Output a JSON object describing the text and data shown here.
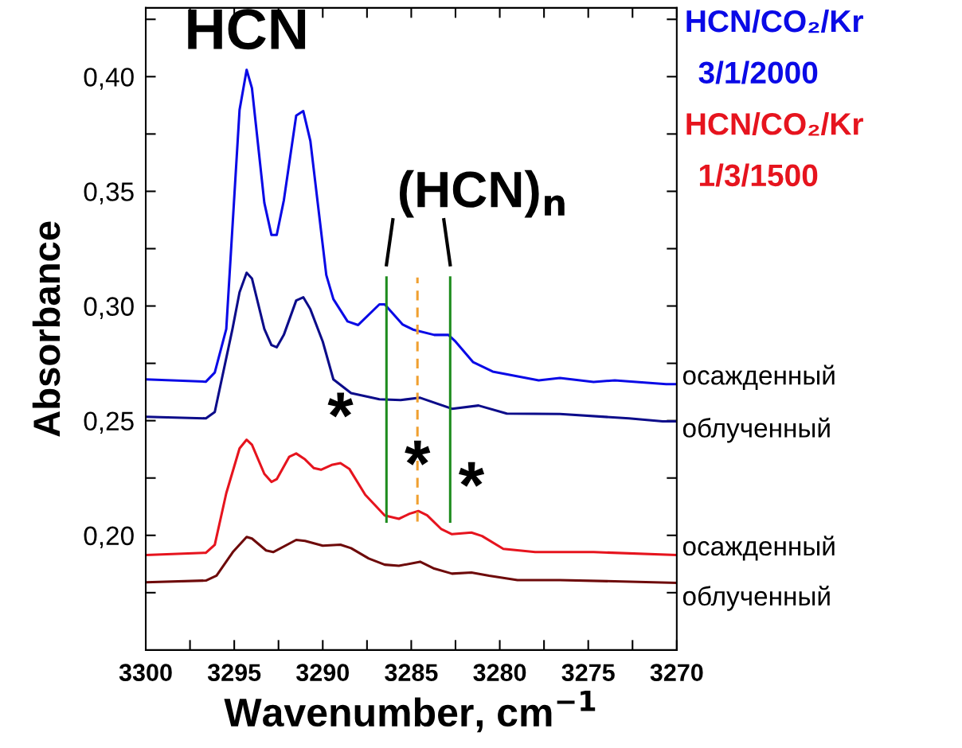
{
  "chart_data": {
    "type": "line",
    "xlabel": "Wavenumber, cm$^{−1}$",
    "ylabel": "Absorbance",
    "xlim": [
      3300,
      3270
    ],
    "ylim": [
      0.15,
      0.43
    ],
    "xticks": [
      3300,
      {
        "value": 3297.5,
        "label": null
      },
      3295,
      {
        "value": 3292.5,
        "label": null
      },
      3290,
      {
        "value": 3287.5,
        "label": null
      },
      3285,
      {
        "value": 3282.5,
        "label": null
      },
      3280,
      {
        "value": 3277.5,
        "label": null
      },
      3275,
      {
        "value": 3272.5,
        "label": null
      },
      3270
    ],
    "yticks": [
      {
        "value": 0.175,
        "label": null
      },
      {
        "value": 0.2,
        "label": "0,20"
      },
      {
        "value": 0.225,
        "label": null
      },
      {
        "value": 0.25,
        "label": "0,25"
      },
      {
        "value": 0.275,
        "label": null
      },
      {
        "value": 0.3,
        "label": "0,30"
      },
      {
        "value": 0.325,
        "label": null
      },
      {
        "value": 0.35,
        "label": "0,35"
      },
      {
        "value": 0.375,
        "label": null
      },
      {
        "value": 0.4,
        "label": "0,40"
      },
      {
        "value": 0.425,
        "label": null
      }
    ],
    "grid": false,
    "legend": false,
    "marker": "none",
    "line_style": "solid",
    "series": [
      {
        "name": "осажденный",
        "color": "#0a0ae6",
        "x": [
          3300,
          3296.6,
          3296.1,
          3295.45,
          3294.7,
          3294.3,
          3294.0,
          3293.3,
          3292.9,
          3292.6,
          3292.2,
          3291.5,
          3291.1,
          3290.7,
          3289.8,
          3289.4,
          3288.6,
          3288.0,
          3286.8,
          3286.5,
          3285.5,
          3284.9,
          3283.7,
          3282.9,
          3282.5,
          3281.5,
          3280.4,
          3277.8,
          3276.6,
          3274.7,
          3273.5,
          3270.6,
          3270
        ],
        "values": [
          0.268,
          0.267,
          0.271,
          0.29,
          0.3855,
          0.403,
          0.395,
          0.345,
          0.331,
          0.331,
          0.346,
          0.383,
          0.385,
          0.372,
          0.3135,
          0.303,
          0.2933,
          0.2917,
          0.3007,
          0.3007,
          0.292,
          0.2897,
          0.2874,
          0.2874,
          0.2845,
          0.2755,
          0.2714,
          0.2676,
          0.2686,
          0.2669,
          0.2676,
          0.2659,
          0.2659
        ]
      },
      {
        "name": "облученный",
        "color": "#0c0c8a",
        "x": [
          3300,
          3296.6,
          3296.1,
          3295.1,
          3294.7,
          3294.3,
          3294.0,
          3293.3,
          3292.9,
          3292.6,
          3292.2,
          3291.5,
          3291.1,
          3290.7,
          3290.0,
          3289.4,
          3288.4,
          3286.8,
          3285.6,
          3284.5,
          3282.7,
          3281.2,
          3279.6,
          3276.6,
          3272.7,
          3270.8,
          3270
        ],
        "values": [
          0.2517,
          0.251,
          0.2538,
          0.29,
          0.306,
          0.3145,
          0.312,
          0.29,
          0.283,
          0.282,
          0.2874,
          0.3024,
          0.3038,
          0.2986,
          0.2845,
          0.268,
          0.262,
          0.2593,
          0.259,
          0.26,
          0.2552,
          0.2566,
          0.2531,
          0.2529,
          0.251,
          0.2497,
          0.2497
        ]
      },
      {
        "name": "осажденный",
        "color": "#e6141e",
        "x": [
          3300,
          3296.6,
          3296.1,
          3295.45,
          3294.7,
          3294.3,
          3294.0,
          3293.3,
          3292.9,
          3292.6,
          3291.9,
          3291.5,
          3291.0,
          3290.5,
          3290.1,
          3289.5,
          3289.0,
          3288.5,
          3287.6,
          3286.5,
          3285.7,
          3285.1,
          3284.6,
          3284.1,
          3283.3,
          3282.7,
          3281.6,
          3281.0,
          3279.8,
          3278.0,
          3274.7,
          3270
        ],
        "values": [
          0.1914,
          0.1924,
          0.1959,
          0.2184,
          0.2379,
          0.2417,
          0.2395,
          0.2268,
          0.2233,
          0.2245,
          0.2342,
          0.2357,
          0.2331,
          0.2293,
          0.2286,
          0.2307,
          0.2315,
          0.229,
          0.2177,
          0.2087,
          0.2072,
          0.2094,
          0.2106,
          0.2087,
          0.2027,
          0.2005,
          0.2012,
          0.1997,
          0.1941,
          0.1927,
          0.1927,
          0.1914
        ]
      },
      {
        "name": "облученный",
        "color": "#6e0a0a",
        "x": [
          3300,
          3296.6,
          3296.0,
          3295.05,
          3294.3,
          3294.0,
          3293.2,
          3292.8,
          3291.5,
          3291.0,
          3290.0,
          3289.0,
          3288.4,
          3287.4,
          3286.5,
          3285.7,
          3284.5,
          3283.7,
          3282.7,
          3281.6,
          3280.6,
          3279.0,
          3276.6,
          3270
        ],
        "values": [
          0.1795,
          0.1803,
          0.1824,
          0.193,
          0.1993,
          0.1986,
          0.1934,
          0.1927,
          0.198,
          0.1976,
          0.1955,
          0.1959,
          0.1944,
          0.1899,
          0.1872,
          0.1867,
          0.1885,
          0.1855,
          0.1833,
          0.1838,
          0.1824,
          0.1805,
          0.1805,
          0.1793
        ]
      }
    ],
    "ref_lines": [
      {
        "axis": "x",
        "value": 3286.4,
        "color": "#1e8c1e",
        "line_style": "solid"
      },
      {
        "axis": "x",
        "value": 3284.65,
        "color": "#f0a030",
        "line_style": "dashed"
      },
      {
        "axis": "x",
        "value": 3282.8,
        "color": "#1e8c1e",
        "line_style": "solid"
      }
    ],
    "annotations": [
      "HCN/CO₂/Kr",
      "3/1/2000",
      "HCN/CO₂/Kr",
      "1/3/1500",
      {
        "text": "HCN",
        "x": 3294.3,
        "y": 0.403
      },
      "(HCN)$_{n}$",
      {
        "text": "*",
        "x": 3289.0,
        "y": 0.2315
      },
      {
        "text": "*",
        "x": 3284.65,
        "y": 0.2106
      },
      {
        "text": "*",
        "x": 3281.6,
        "y": 0.2012
      }
    ]
  }
}
